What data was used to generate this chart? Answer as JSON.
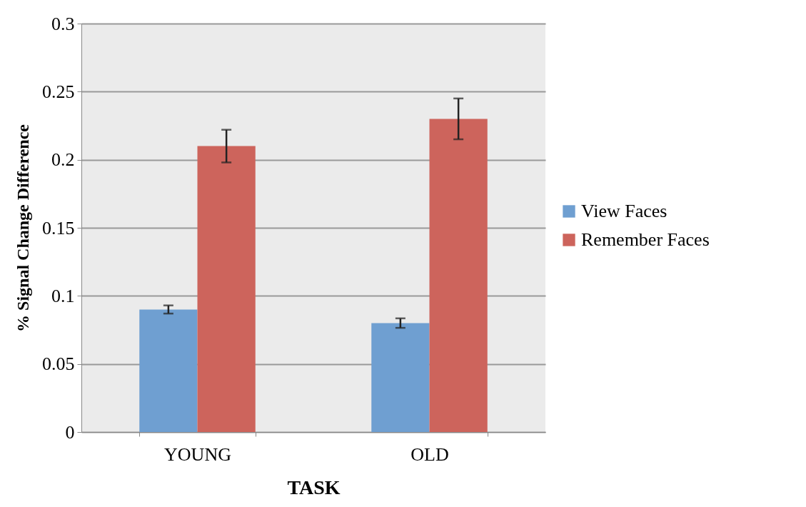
{
  "chart_data": {
    "type": "bar",
    "xlabel": "TASK",
    "ylabel": "% Signal Change Difference",
    "categories": [
      "YOUNG",
      "OLD"
    ],
    "series": [
      {
        "name": "View Faces",
        "color": "#6f9fd1",
        "values": [
          0.09,
          0.08
        ],
        "errors": [
          0.003,
          0.0035
        ]
      },
      {
        "name": "Remember Faces",
        "color": "#cd645c",
        "values": [
          0.21,
          0.23
        ],
        "errors": [
          0.012,
          0.015
        ]
      }
    ],
    "ylim": [
      0,
      0.3
    ],
    "yticks": [
      0,
      0.05,
      0.1,
      0.15,
      0.2,
      0.25,
      0.3
    ],
    "grid": "y",
    "legend": "right"
  }
}
